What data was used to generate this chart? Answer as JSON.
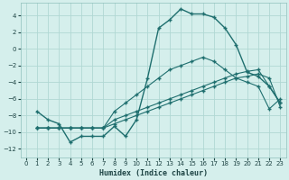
{
  "title": "",
  "xlabel": "Humidex (Indice chaleur)",
  "xlim": [
    -0.5,
    23.5
  ],
  "ylim": [
    -13,
    5.5
  ],
  "yticks": [
    -12,
    -10,
    -8,
    -6,
    -4,
    -2,
    0,
    2,
    4
  ],
  "xticks": [
    0,
    1,
    2,
    3,
    4,
    5,
    6,
    7,
    8,
    9,
    10,
    11,
    12,
    13,
    14,
    15,
    16,
    17,
    18,
    19,
    20,
    21,
    22,
    23
  ],
  "background_color": "#d5efec",
  "grid_color": "#b0d8d4",
  "line_color": "#1e6e6e",
  "series_main": [
    null,
    -7.5,
    -8.5,
    -9.0,
    -11.2,
    -10.5,
    -10.5,
    -10.5,
    -9.3,
    -10.5,
    -8.5,
    -3.5,
    2.5,
    3.5,
    4.8,
    4.2,
    4.2,
    3.8,
    2.5,
    0.5,
    -2.8,
    -3.3,
    -4.5,
    -6.5
  ],
  "series_linear1": [
    null,
    -9.5,
    -9.5,
    -9.5,
    -9.5,
    -9.5,
    -9.5,
    -9.5,
    -9.0,
    -8.5,
    -8.0,
    -7.5,
    -7.0,
    -6.5,
    -6.0,
    -5.5,
    -5.0,
    -4.5,
    -4.0,
    -3.5,
    -3.3,
    -3.0,
    -3.5,
    -7.0
  ],
  "series_linear2": [
    null,
    -9.5,
    -9.5,
    -9.5,
    -9.5,
    -9.5,
    -9.5,
    -9.5,
    -8.5,
    -8.0,
    -7.5,
    -7.0,
    -6.5,
    -6.0,
    -5.5,
    -5.0,
    -4.5,
    -4.0,
    -3.5,
    -3.0,
    -2.7,
    -2.5,
    -4.5,
    -6.5
  ],
  "series_linear3": [
    null,
    -9.5,
    -9.5,
    -9.5,
    -9.5,
    -9.5,
    -9.5,
    -9.5,
    -7.5,
    -6.5,
    -5.5,
    -4.5,
    -3.5,
    -2.5,
    -2.0,
    -1.5,
    -1.0,
    -1.5,
    -2.5,
    -3.5,
    -4.0,
    -4.5,
    -7.2,
    -6.0
  ]
}
